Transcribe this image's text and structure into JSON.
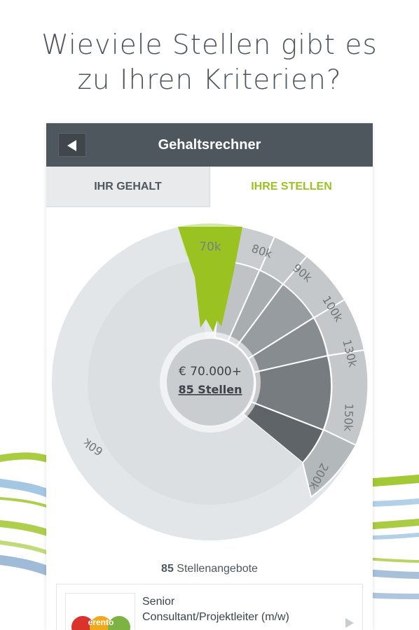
{
  "headline": {
    "line1": "Wieviele Stellen gibt es",
    "line2": "zu Ihren Kriterien?"
  },
  "appbar": {
    "title": "Gehaltsrechner",
    "back_icon": "back-arrow-icon"
  },
  "tabs": [
    {
      "label": "IHR GEHALT",
      "active": false
    },
    {
      "label": "IHRE STELLEN",
      "active": true
    }
  ],
  "wheel": {
    "segments": [
      "60k",
      "70k",
      "80k",
      "90k",
      "100k",
      "130k",
      "150k",
      "200k"
    ],
    "selected": "70k",
    "center_amount": "€ 70.000+",
    "center_jobs": "85 Stellen"
  },
  "results": {
    "count": "85",
    "label": "Stellenangebote"
  },
  "job": {
    "title_line1": "Senior",
    "title_line2": "Consultant/Projektleiter (m/w)",
    "logo_text": "erento"
  },
  "colors": {
    "accent": "#9ac321",
    "appbar": "#4f575e"
  }
}
